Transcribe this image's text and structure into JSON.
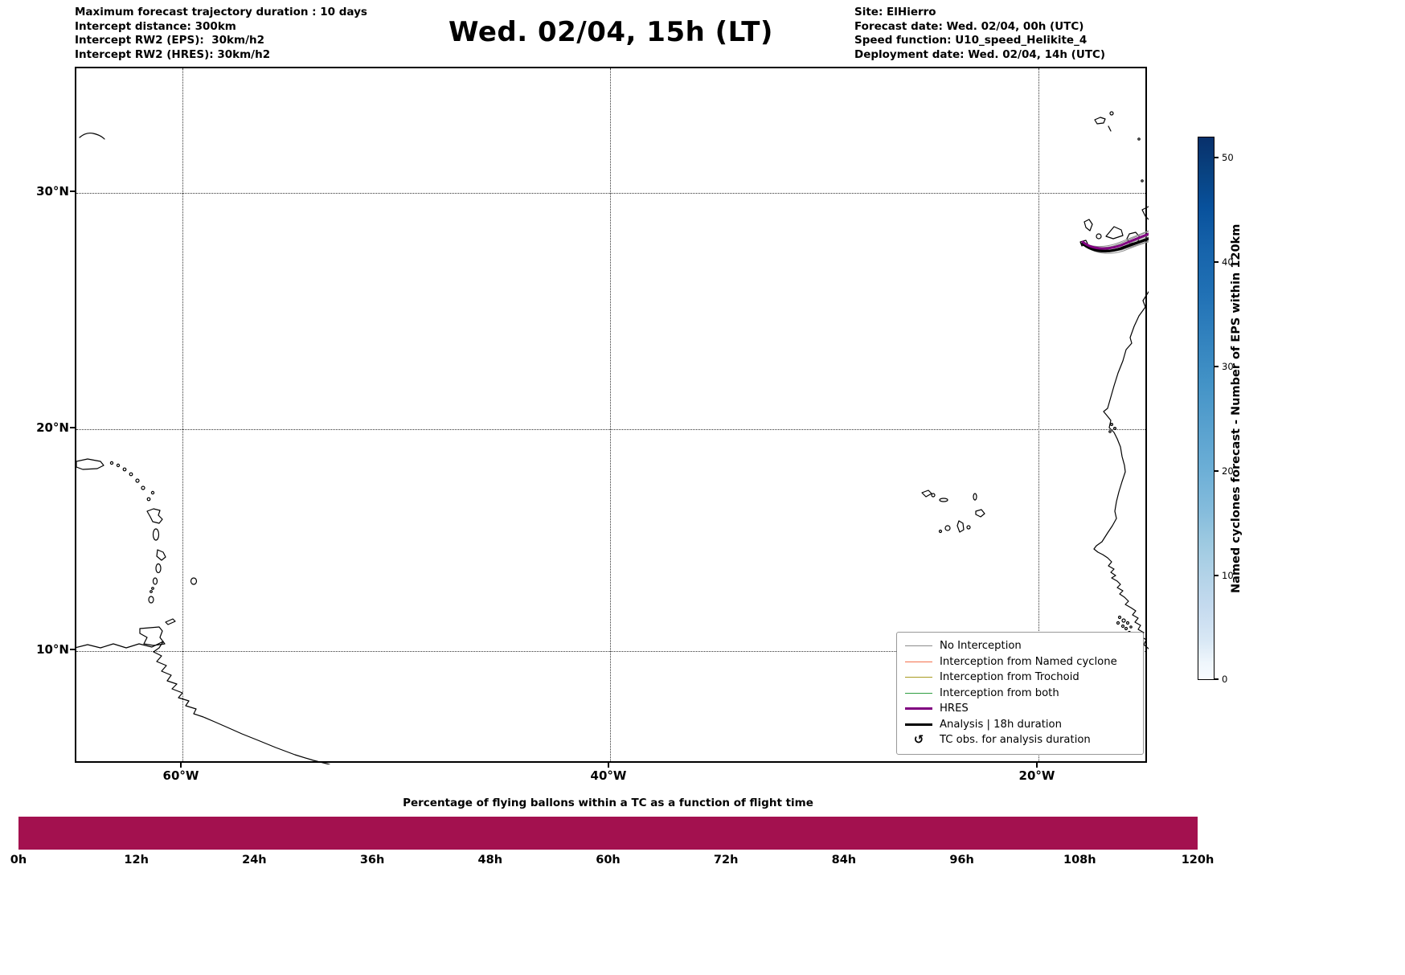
{
  "header": {
    "left_lines": [
      "Maximum forecast trajectory duration : 10 days",
      "Intercept distance: 300km",
      "Intercept RW2 (EPS):  30km/h2",
      "Intercept RW2 (HRES): 30km/h2"
    ],
    "title": "Wed. 02/04, 15h (LT)",
    "right_lines": [
      "Site: ElHierro",
      "Forecast date: Wed. 02/04, 00h (UTC)",
      "Speed function: U10_speed_Helikite_4",
      "Deployment date: Wed. 02/04, 14h (UTC)"
    ]
  },
  "map": {
    "lat_ticks": [
      "30°N",
      "20°N",
      "10°N"
    ],
    "lon_ticks": [
      "60°W",
      "40°W",
      "20°W"
    ]
  },
  "legend": {
    "items": [
      {
        "label": "No Interception",
        "color": "#8c8c8c",
        "weight": "thin",
        "kind": "line"
      },
      {
        "label": "Interception from Named cyclone",
        "color": "#f4704c",
        "weight": "thin",
        "kind": "line"
      },
      {
        "label": "Interception from Trochoid",
        "color": "#a89a20",
        "weight": "thin",
        "kind": "line"
      },
      {
        "label": "Interception from both",
        "color": "#2f9e41",
        "weight": "thin",
        "kind": "line"
      },
      {
        "label": "HRES",
        "color": "#800080",
        "weight": "thick",
        "kind": "line"
      },
      {
        "label": "Analysis | 18h duration",
        "color": "#000000",
        "weight": "thick",
        "kind": "line"
      },
      {
        "label": "TC obs. for analysis duration",
        "color": "#000000",
        "kind": "symbol",
        "symbol": "↺"
      }
    ]
  },
  "colorbar": {
    "title": "Named cyclones forecast - Number of EPS within 120km",
    "ticks": [
      0,
      10,
      20,
      30,
      40,
      50
    ],
    "range": [
      0,
      52
    ],
    "colormap": "Blues",
    "top_color": "#08306b",
    "bottom_color": "#f7fbff"
  },
  "bottom_chart": {
    "title": "Percentage of flying ballons within a TC as a function of flight time",
    "x_ticks": [
      "0h",
      "12h",
      "24h",
      "36h",
      "48h",
      "60h",
      "72h",
      "84h",
      "96h",
      "108h",
      "120h"
    ],
    "bar_color": "#a3114f"
  },
  "chart_data": [
    {
      "type": "line",
      "subplot": "main-map",
      "title": "Wed. 02/04, 15h (LT)",
      "description": "North Atlantic map with balloon forecast trajectories launched from El Hierro, Canary Islands",
      "x_ticks": [
        "60°W",
        "40°W",
        "20°W"
      ],
      "x_range_deg_west": [
        65,
        14.8
      ],
      "y_ticks": [
        "30°N",
        "20°N",
        "10°N"
      ],
      "y_range_deg_north": [
        4.8,
        35.3
      ],
      "grid": "dotted",
      "legend_position": "lower right",
      "series": [
        {
          "name": "No Interception",
          "color": "#8c8c8c",
          "style": "thin",
          "on_map": "bundle of EPS trajectories from El Hierro (~27.8N, 18W) curving east toward the African coast near 27N"
        },
        {
          "name": "Interception from Named cyclone",
          "color": "#f4704c",
          "style": "thin"
        },
        {
          "name": "Interception from Trochoid",
          "color": "#a89a20",
          "style": "thin"
        },
        {
          "name": "Interception from both",
          "color": "#2f9e41",
          "style": "thin"
        },
        {
          "name": "HRES",
          "color": "#800080",
          "style": "thick",
          "on_map": "single trajectory within the bundle"
        },
        {
          "name": "Analysis | 18h duration",
          "color": "#000000",
          "style": "thick",
          "on_map": "single trajectory within the bundle"
        }
      ],
      "map_features": [
        "Bermuda",
        "Puerto Rico",
        "Lesser Antilles",
        "Barbados",
        "Trinidad and Tobago",
        "South American coast",
        "Cape Verde islands",
        "Canary Islands",
        "Madeira",
        "West African coast"
      ]
    },
    {
      "type": "bar",
      "subplot": "bottom-strip",
      "title": "Percentage of flying ballons within a TC as a function of flight time",
      "x_ticks": [
        "0h",
        "12h",
        "24h",
        "36h",
        "48h",
        "60h",
        "72h",
        "84h",
        "96h",
        "108h",
        "120h"
      ],
      "bar": {
        "x_start": "0h",
        "x_end": "120h",
        "fill": "constant full-height band",
        "color": "#a3114f"
      },
      "y_axis": "none shown"
    },
    {
      "type": "heatmap",
      "subplot": "colorbar",
      "title": "Named cyclones forecast - Number of EPS within 120km",
      "colormap": "Blues",
      "ticks": [
        0,
        10,
        20,
        30,
        40,
        50
      ],
      "range": [
        0,
        52
      ]
    }
  ]
}
